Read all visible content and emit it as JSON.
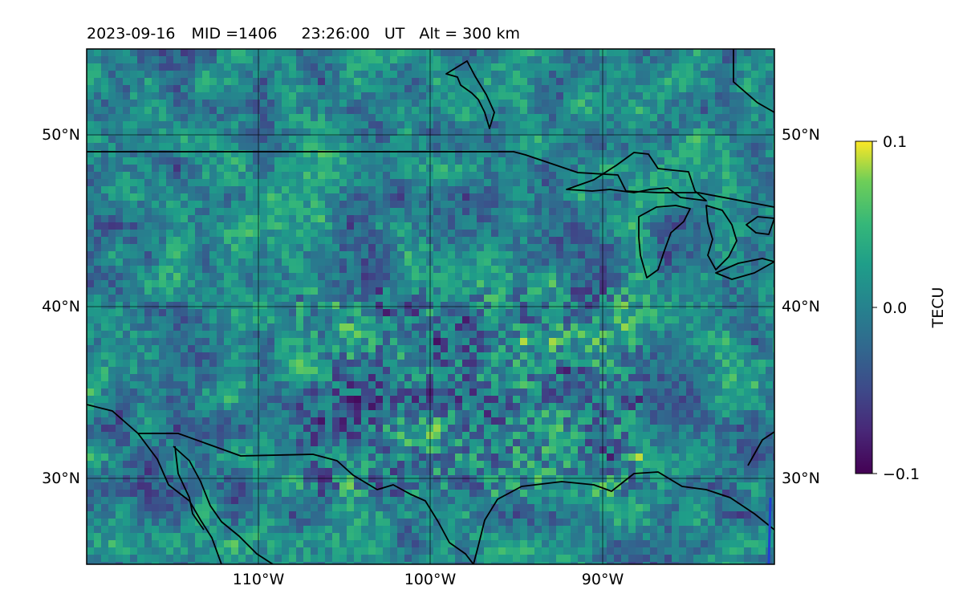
{
  "title": {
    "date": "2023-09-16",
    "mid": "MID =1406",
    "time": "23:26:00",
    "time_system": "UT",
    "altitude": "Alt = 300 km"
  },
  "map": {
    "projection": "PlateCarree",
    "extent_lon": [
      -120,
      -80
    ],
    "extent_lat": [
      25,
      55
    ],
    "gridlines_lon": [
      -110,
      -100,
      -90
    ],
    "gridlines_lat": [
      30,
      40,
      50
    ],
    "lon_tick_labels": [
      "110°W",
      "100°W",
      "90°W"
    ],
    "lat_tick_labels_left": [
      "30°N",
      "40°N",
      "50°N"
    ],
    "lat_tick_labels_right": [
      "30°N",
      "40°N",
      "50°N"
    ],
    "features": [
      "coastlines",
      "country borders",
      "Great Lakes"
    ],
    "field": "differential TEC (noise-like)",
    "grid_on": true
  },
  "colorbar": {
    "label": "TECU",
    "colormap": "viridis",
    "vmin": -0.1,
    "vmax": 0.1,
    "ticks": [
      "0.1",
      "0.0",
      "−0.1"
    ],
    "tick_values": [
      0.1,
      0.0,
      -0.1
    ]
  },
  "colors": {
    "viridis_low": "#440154",
    "viridis_mid": "#21918c",
    "viridis_high": "#fde725",
    "coastline": "#000000",
    "gridline": "#000000"
  }
}
